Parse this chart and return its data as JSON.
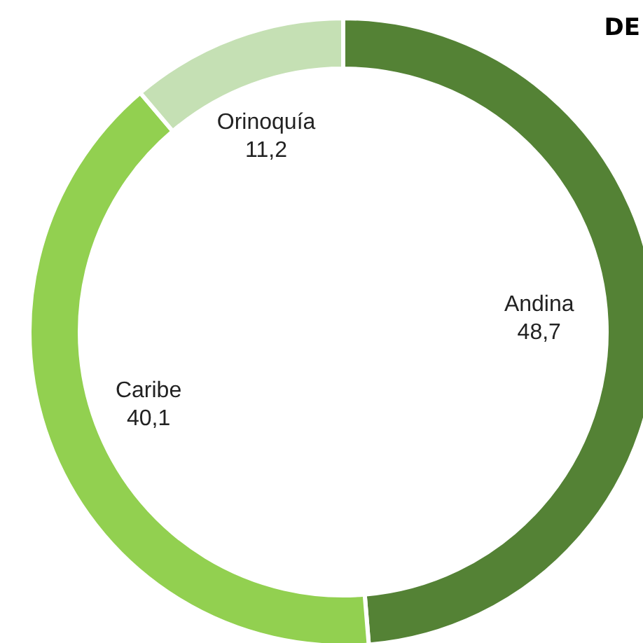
{
  "chart_data": {
    "type": "donut",
    "title": "DE",
    "categories": [
      "Andina",
      "Caribe",
      "Orinoquía"
    ],
    "values": [
      48.7,
      40.1,
      11.2
    ],
    "value_labels": [
      "48,7",
      "40,1",
      "11,2"
    ],
    "colors": [
      "#548235",
      "#92d050",
      "#c5e0b4"
    ],
    "legend": false
  }
}
